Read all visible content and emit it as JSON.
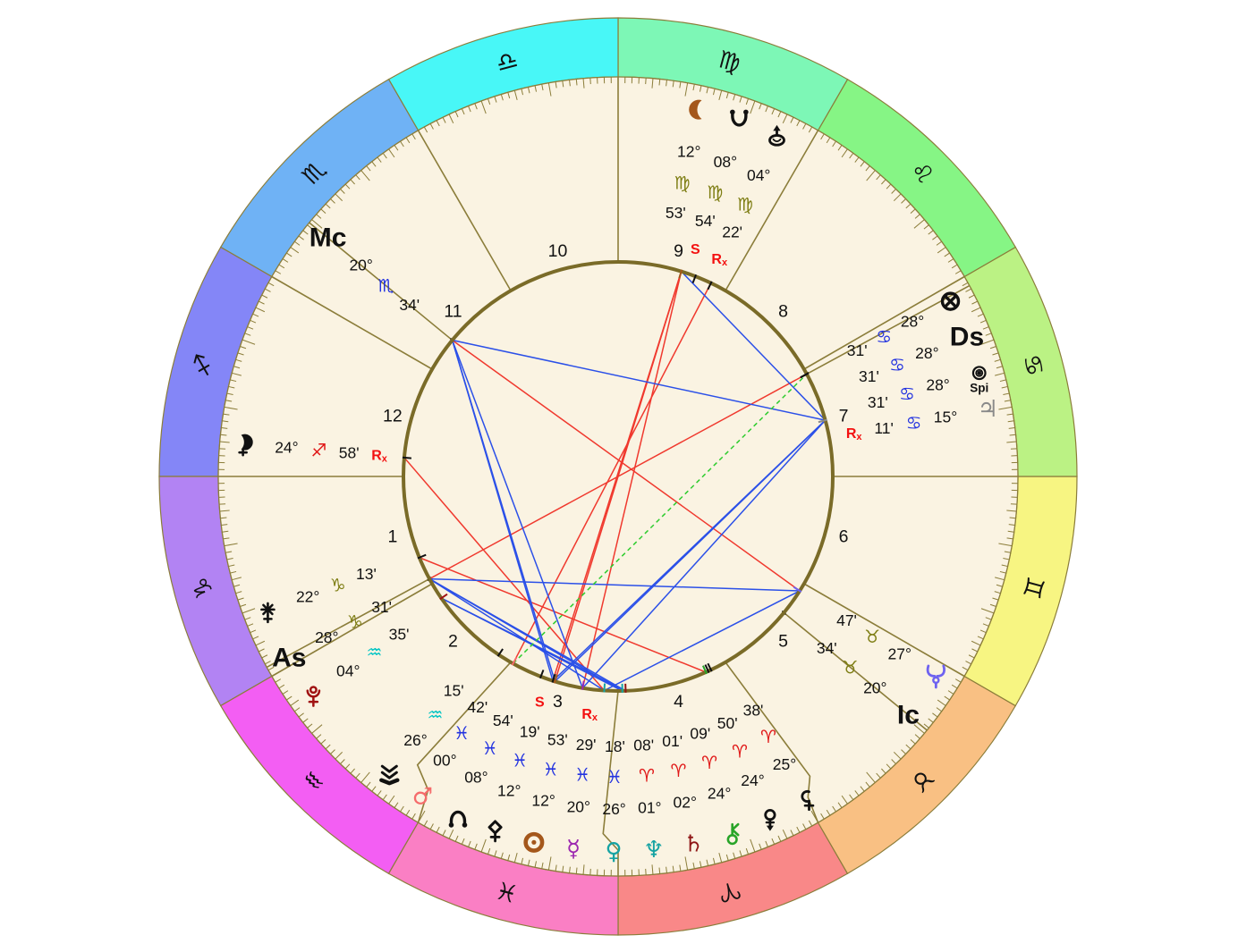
{
  "title": "natal-chart-wheel",
  "palette": {
    "page_bg": "#ffffff",
    "wheel_bg": "#faf3e2",
    "ring_line": "#8b7d3a",
    "hub_line": "#7a6b28",
    "text": "#111111",
    "marker_red": "#f31010",
    "aspect_red": "#f0392e",
    "aspect_blue": "#2b50e8",
    "aspect_green": "#2ecc2e"
  },
  "element_colors": {
    "fire": "#e01818",
    "earth": "#7e7e14",
    "air": "#00c4c4",
    "water": "#2333e0"
  },
  "zodiac": [
    {
      "name": "aries",
      "glyph": "♈",
      "element": "fire",
      "band": "#f98888"
    },
    {
      "name": "taurus",
      "glyph": "♉",
      "element": "earth",
      "band": "#f9c083"
    },
    {
      "name": "gemini",
      "glyph": "♊",
      "element": "air",
      "band": "#f7f582"
    },
    {
      "name": "cancer",
      "glyph": "♋",
      "element": "water",
      "band": "#bbf284"
    },
    {
      "name": "leo",
      "glyph": "♌",
      "element": "fire",
      "band": "#86f585"
    },
    {
      "name": "virgo",
      "glyph": "♍",
      "element": "earth",
      "band": "#7df7b6"
    },
    {
      "name": "libra",
      "glyph": "♎",
      "element": "air",
      "band": "#48f7f7"
    },
    {
      "name": "scorpio",
      "glyph": "♏",
      "element": "water",
      "band": "#6fb2f5"
    },
    {
      "name": "sagittarius",
      "glyph": "♐",
      "element": "fire",
      "band": "#8486f7"
    },
    {
      "name": "capricorn",
      "glyph": "♑",
      "element": "earth",
      "band": "#b283f3"
    },
    {
      "name": "aquarius",
      "glyph": "♒",
      "element": "air",
      "band": "#f35ef3"
    },
    {
      "name": "pisces",
      "glyph": "♓",
      "element": "water",
      "band": "#fa7fc4"
    }
  ],
  "houses": [
    {
      "num": "1",
      "mid": 285
    },
    {
      "num": "2",
      "mid": 315
    },
    {
      "num": "3",
      "mid": 345
    },
    {
      "num": "4",
      "mid": 15
    },
    {
      "num": "5",
      "mid": 45
    },
    {
      "num": "6",
      "mid": 75
    },
    {
      "num": "7",
      "mid": 105
    },
    {
      "num": "8",
      "mid": 135
    },
    {
      "num": "9",
      "mid": 165
    },
    {
      "num": "10",
      "mid": 195
    },
    {
      "num": "11",
      "mid": 225
    },
    {
      "num": "12",
      "mid": 255
    }
  ],
  "points": [
    {
      "id": "moon",
      "kind": "svg",
      "color": "#a4571b",
      "deg": "12°",
      "sign": "♍",
      "element": "earth",
      "min": "53'",
      "lon": 162.883,
      "disp": 167.7
    },
    {
      "id": "south-node",
      "kind": "svg",
      "color": "#111111",
      "deg": "08°",
      "sign": "♍",
      "element": "earth",
      "min": "54'",
      "lon": 158.9,
      "disp": 161.2,
      "marker": "S"
    },
    {
      "id": "transpluto",
      "kind": "svg",
      "color": "#111111",
      "deg": "04°",
      "sign": "♍",
      "element": "earth",
      "min": "22'",
      "lon": 154.367,
      "disp": 155.0,
      "marker": "Rx"
    },
    {
      "id": "fortune",
      "kind": "svg",
      "color": "#111111",
      "deg": "28°",
      "sign": "♋",
      "element": "water",
      "min": "31'",
      "lon": 118.517,
      "disp": 117.8
    },
    {
      "id": "dsc",
      "kind": "angle",
      "label": "Ds",
      "color": "#111111",
      "deg": "28°",
      "sign": "♋",
      "element": "water",
      "min": "31'",
      "lon": 118.517,
      "disp": 111.8
    },
    {
      "id": "spirit",
      "kind": "svg",
      "sub": "Spi",
      "color": "#111111",
      "deg": "28°",
      "sign": "♋",
      "element": "water",
      "min": "31'",
      "lon": 118.517,
      "disp": 106.0
    },
    {
      "id": "jupiter",
      "kind": "text",
      "glyph": "♃",
      "color": "#8a8a8a",
      "deg": "15°",
      "sign": "♋",
      "element": "water",
      "min": "11'",
      "lon": 105.183,
      "disp": 100.3,
      "marker": "Rx"
    },
    {
      "id": "mc",
      "kind": "angle",
      "label": "Mc",
      "color": "#111111",
      "deg": "20°",
      "sign": "♏",
      "element": "water",
      "min": "34'",
      "lon": 230.567,
      "disp": 230.567
    },
    {
      "id": "lilith",
      "kind": "svg",
      "color": "#111111",
      "deg": "24°",
      "sign": "♐",
      "element": "fire",
      "min": "58'",
      "lon": 264.967,
      "disp": 264.967,
      "marker": "Rx"
    },
    {
      "id": "juno",
      "kind": "svg",
      "color": "#111111",
      "deg": "22°",
      "sign": "♑",
      "element": "earth",
      "min": "13'",
      "lon": 292.217,
      "disp": 291.2
    },
    {
      "id": "asc",
      "kind": "angle",
      "label": "As",
      "color": "#111111",
      "deg": "28°",
      "sign": "♑",
      "element": "earth",
      "min": "31'",
      "lon": 298.517,
      "disp": 298.9
    },
    {
      "id": "pluto",
      "kind": "svg",
      "color": "#a01212",
      "deg": "04°",
      "sign": "♒",
      "element": "air",
      "min": "35'",
      "lon": 304.583,
      "disp": 305.8
    },
    {
      "id": "vesta",
      "kind": "svg",
      "color": "#111111",
      "deg": "26°",
      "sign": "♒",
      "element": "air",
      "min": "15'",
      "lon": 326.25,
      "disp": 322.5
    },
    {
      "id": "mars",
      "kind": "text",
      "glyph": "♂",
      "color": "#f56b6b",
      "deg": "00°",
      "sign": "♓",
      "element": "water",
      "min": "42'",
      "lon": 330.7,
      "disp": 328.64
    },
    {
      "id": "north-node",
      "kind": "svg",
      "color": "#111111",
      "deg": "08°",
      "sign": "♓",
      "element": "water",
      "min": "54'",
      "lon": 338.9,
      "disp": 334.77
    },
    {
      "id": "pallas",
      "kind": "svg",
      "color": "#111111",
      "deg": "12°",
      "sign": "♓",
      "element": "water",
      "min": "19'",
      "lon": 342.317,
      "disp": 340.9,
      "marker": "S"
    },
    {
      "id": "sun",
      "kind": "svg",
      "color": "#a4571b",
      "deg": "12°",
      "sign": "♓",
      "element": "water",
      "min": "53'",
      "lon": 342.883,
      "disp": 347.05
    },
    {
      "id": "mercury",
      "kind": "text",
      "glyph": "☿",
      "color": "#9c27b0",
      "deg": "20°",
      "sign": "♓",
      "element": "water",
      "min": "29'",
      "lon": 350.483,
      "disp": 353.18,
      "marker": "Rx"
    },
    {
      "id": "venus",
      "kind": "text",
      "glyph": "♀",
      "color": "#16a3a3",
      "deg": "26°",
      "sign": "♓",
      "element": "water",
      "min": "18'",
      "lon": 356.3,
      "disp": 359.32
    },
    {
      "id": "neptune",
      "kind": "text",
      "glyph": "♆",
      "color": "#16a3a3",
      "deg": "01°",
      "sign": "♈",
      "element": "fire",
      "min": "08'",
      "lon": 1.133,
      "disp": 5.45
    },
    {
      "id": "saturn",
      "kind": "text",
      "glyph": "♄",
      "color": "#8f1616",
      "deg": "02°",
      "sign": "♈",
      "element": "fire",
      "min": "01'",
      "lon": 2.017,
      "disp": 11.59
    },
    {
      "id": "chiron",
      "kind": "svg",
      "color": "#28a428",
      "deg": "24°",
      "sign": "♈",
      "element": "fire",
      "min": "09'",
      "lon": 24.15,
      "disp": 17.7
    },
    {
      "id": "eris",
      "kind": "svg",
      "color": "#111111",
      "deg": "24°",
      "sign": "♈",
      "element": "fire",
      "min": "50'",
      "lon": 24.833,
      "disp": 23.86
    },
    {
      "id": "ceres",
      "kind": "svg",
      "color": "#111111",
      "deg": "25°",
      "sign": "♈",
      "element": "fire",
      "min": "38'",
      "lon": 25.633,
      "disp": 30.0
    },
    {
      "id": "uranus",
      "kind": "svg",
      "color": "#6e62f0",
      "deg": "27°",
      "sign": "♉",
      "element": "earth",
      "min": "47'",
      "lon": 57.783,
      "disp": 57.783
    },
    {
      "id": "ic",
      "kind": "angle",
      "label": "Ic",
      "color": "#111111",
      "deg": "20°",
      "sign": "♉",
      "element": "earth",
      "min": "34'",
      "lon": 50.567,
      "disp": 50.567
    }
  ],
  "aspects": [
    {
      "a": "sun",
      "b": "moon",
      "type": "opposition",
      "color": "red"
    },
    {
      "a": "pallas",
      "b": "moon",
      "type": "opposition",
      "color": "red"
    },
    {
      "a": "mercury",
      "b": "moon",
      "type": "opposition",
      "color": "red"
    },
    {
      "a": "venus",
      "b": "lilith",
      "type": "square",
      "color": "red"
    },
    {
      "a": "mc",
      "b": "uranus",
      "type": "opposition",
      "color": "red"
    },
    {
      "a": "juno",
      "b": "chiron",
      "type": "square",
      "color": "red"
    },
    {
      "a": "mars",
      "b": "transpluto",
      "type": "opposition",
      "color": "red"
    },
    {
      "a": "asc",
      "b": "fortune",
      "type": "opposition",
      "color": "red"
    },
    {
      "a": "moon",
      "b": "jupiter",
      "type": "sextile",
      "color": "blue"
    },
    {
      "a": "sun",
      "b": "jupiter",
      "type": "trine",
      "color": "blue"
    },
    {
      "a": "pallas",
      "b": "jupiter",
      "type": "trine",
      "color": "blue"
    },
    {
      "a": "mercury",
      "b": "jupiter",
      "type": "trine",
      "color": "blue"
    },
    {
      "a": "mc",
      "b": "jupiter",
      "type": "trine",
      "color": "blue"
    },
    {
      "a": "mc",
      "b": "sun",
      "type": "trine",
      "color": "blue"
    },
    {
      "a": "mc",
      "b": "mercury",
      "type": "trine",
      "color": "blue"
    },
    {
      "a": "mc",
      "b": "pallas",
      "type": "trine",
      "color": "blue"
    },
    {
      "a": "venus",
      "b": "uranus",
      "type": "sextile",
      "color": "blue"
    },
    {
      "a": "saturn",
      "b": "pluto",
      "type": "sextile",
      "color": "blue"
    },
    {
      "a": "neptune",
      "b": "pluto",
      "type": "sextile",
      "color": "blue"
    },
    {
      "a": "asc",
      "b": "uranus",
      "type": "trine",
      "color": "blue"
    },
    {
      "a": "asc",
      "b": "venus",
      "type": "sextile",
      "color": "blue"
    },
    {
      "a": "asc",
      "b": "neptune",
      "type": "sextile",
      "color": "blue"
    },
    {
      "a": "asc",
      "b": "saturn",
      "type": "sextile",
      "color": "blue"
    },
    {
      "a": "mars",
      "b": "fortune",
      "type": "quincunx",
      "color": "green",
      "dashed": true
    }
  ]
}
